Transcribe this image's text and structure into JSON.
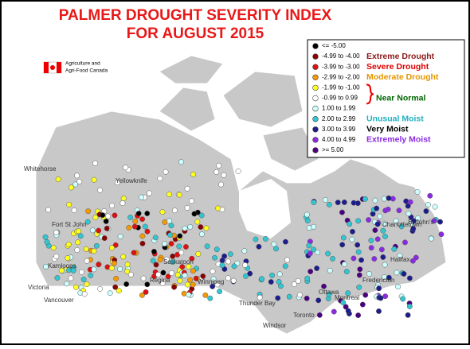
{
  "title": [
    "PALMER DROUGHT SEVERITY INDEX",
    "FOR AUGUST 2015"
  ],
  "logo": [
    "Agriculture and",
    "Agri-Food Canada"
  ],
  "legend": {
    "items": [
      {
        "range": "<= -5.00",
        "color": "#000000"
      },
      {
        "range": "-4.99 to -4.00",
        "color": "#8b0000"
      },
      {
        "range": "-3.99 to -3.00",
        "color": "#e01010"
      },
      {
        "range": "-2.99 to -2.00",
        "color": "#f59a00"
      },
      {
        "range": "-1.99 to -1.00",
        "color": "#ffff20"
      },
      {
        "range": "-0.99 to 0.99",
        "color": "#ffffff"
      },
      {
        "range": "1.00 to 1.99",
        "color": "#ccffff"
      },
      {
        "range": "2.00 to 2.99",
        "color": "#33c6d0"
      },
      {
        "range": "3.00 to 3.99",
        "color": "#1c1c8c"
      },
      {
        "range": "4.00 to 4.99",
        "color": "#8a2be2"
      },
      {
        "range": ">= 5.00",
        "color": "#4b0082"
      }
    ],
    "groups": [
      {
        "label": "Extreme Drought",
        "color": "#8b1a1a"
      },
      {
        "label": "Severe Drought",
        "color": "#e00000"
      },
      {
        "label": "Moderate Drought",
        "color": "#e69500"
      },
      {
        "label": "Near Normal",
        "color": "#006400"
      },
      {
        "label": "Unusual Moist",
        "color": "#20b0c0"
      },
      {
        "label": "Very Moist",
        "color": "#000000"
      },
      {
        "label": "Extremely Moist",
        "color": "#8a2be2"
      }
    ]
  },
  "cities": [
    "Whitehorse",
    "Yellowknife",
    "Fort St John",
    "Saskatoon",
    "Regina",
    "Winnipeg",
    "Kamloops",
    "Victoria",
    "Vancouver",
    "Thunder Bay",
    "Ottawa",
    "Montreal",
    "Toronto",
    "Windsor",
    "Fredericton",
    "Halifax",
    "Charlottetown",
    "St John's"
  ]
}
